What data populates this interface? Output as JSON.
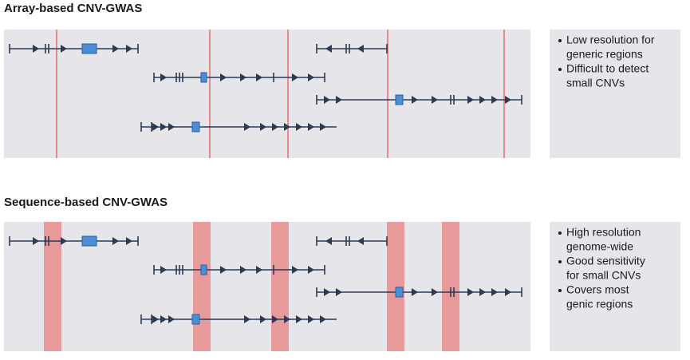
{
  "sections": [
    {
      "title": "Array-based CNV-GWAS",
      "bullets": [
        [
          "Low resolution for",
          "generic regions"
        ],
        [
          "Difficult to detect",
          "small CNVs"
        ]
      ]
    },
    {
      "title": "Sequence-based CNV-GWAS",
      "bullets": [
        [
          "High resolution",
          "genome-wide"
        ],
        [
          "Good sensitivity",
          "for small CNVs"
        ],
        [
          "Covers most",
          "genic regions"
        ]
      ]
    }
  ]
}
